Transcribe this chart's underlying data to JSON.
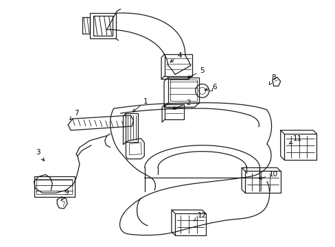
{
  "bg_color": "#ffffff",
  "line_color": "#1a1a1a",
  "figsize": [
    4.89,
    3.6
  ],
  "dpi": 100,
  "label_font": 7.5,
  "label_configs": [
    [
      "1",
      212,
      148,
      190,
      165
    ],
    [
      "2",
      275,
      150,
      248,
      160
    ],
    [
      "3",
      54,
      222,
      65,
      238
    ],
    [
      "4",
      262,
      80,
      245,
      92
    ],
    [
      "5",
      295,
      102,
      270,
      115
    ],
    [
      "6",
      313,
      127,
      295,
      132
    ],
    [
      "7",
      110,
      165,
      98,
      177
    ],
    [
      "8",
      400,
      112,
      393,
      124
    ],
    [
      "9",
      96,
      282,
      88,
      293
    ],
    [
      "10",
      400,
      255,
      375,
      262
    ],
    [
      "11",
      435,
      202,
      420,
      212
    ],
    [
      "12",
      295,
      315,
      280,
      325
    ]
  ]
}
